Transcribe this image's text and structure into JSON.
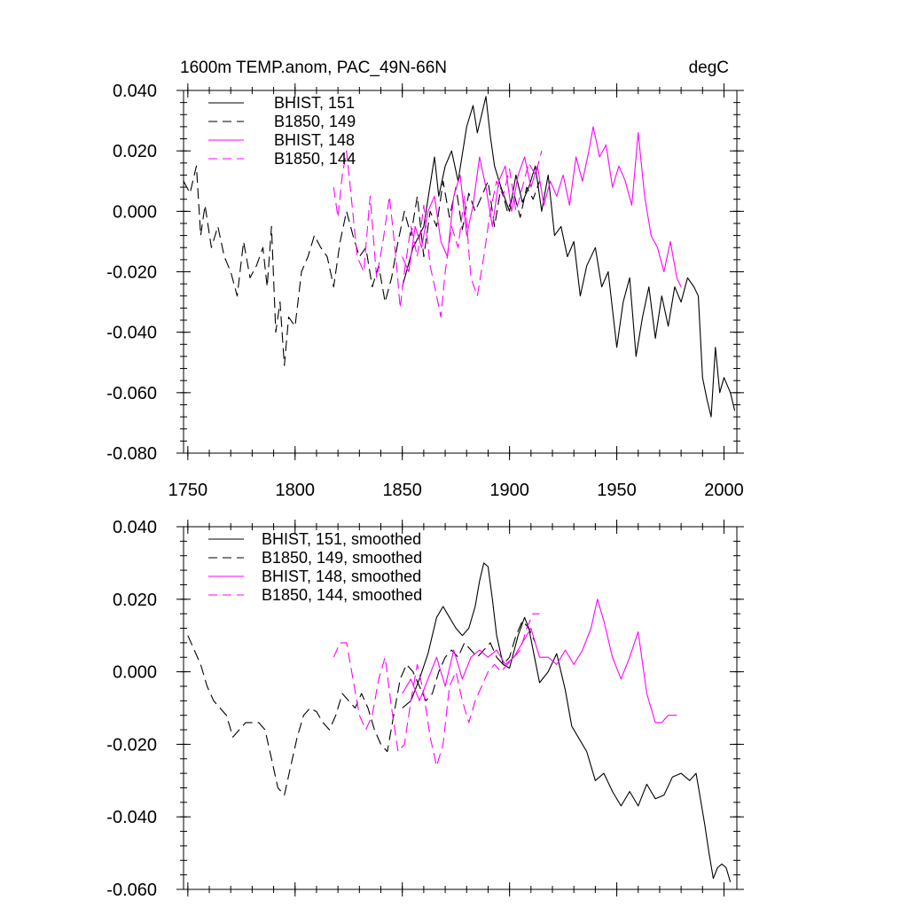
{
  "figure": {
    "title_left": "1600m TEMP.anom, PAC_49N-66N",
    "title_right": "degC"
  },
  "chart_data": [
    {
      "type": "line",
      "title": "1600m TEMP.anom, PAC_49N-66N",
      "units": "degC",
      "xlabel": "",
      "ylabel": "",
      "xlim": [
        1748,
        2006
      ],
      "ylim": [
        -0.08,
        0.04
      ],
      "x_ticks": [
        1750,
        1800,
        1850,
        1900,
        1950,
        2000
      ],
      "x_tick_labels": [
        "1750",
        "1800",
        "1850",
        "1900",
        "1950",
        "2000"
      ],
      "y_ticks": [
        0.04,
        0.02,
        0.0,
        -0.02,
        -0.04,
        -0.06,
        -0.08
      ],
      "y_tick_labels": [
        "0.040",
        "0.020",
        "0.000",
        "-0.020",
        "-0.040",
        "-0.060",
        "-0.080"
      ],
      "grid": false,
      "legend_position": "top-left",
      "series": [
        {
          "name": "BHIST, 151",
          "color": "#000000",
          "dash": "solid",
          "x": [
            1850,
            1855,
            1860,
            1865,
            1867,
            1870,
            1873,
            1876,
            1880,
            1883,
            1885,
            1887,
            1889,
            1891,
            1893,
            1896,
            1900,
            1903,
            1906,
            1909,
            1912,
            1915,
            1918,
            1921,
            1924,
            1927,
            1930,
            1933,
            1936,
            1940,
            1943,
            1946,
            1950,
            1953,
            1956,
            1959,
            1962,
            1965,
            1968,
            1971,
            1974,
            1977,
            1980,
            1983,
            1986,
            1988,
            1990,
            1992,
            1994,
            1996,
            1998,
            2000,
            2003,
            2005
          ],
          "y": [
            -0.025,
            -0.012,
            -0.005,
            0.018,
            0.005,
            0.015,
            0.02,
            0.01,
            0.028,
            0.035,
            0.026,
            0.032,
            0.038,
            0.025,
            0.015,
            0.008,
            0.0,
            0.012,
            0.003,
            0.008,
            0.015,
            0.0,
            0.012,
            -0.008,
            -0.005,
            -0.015,
            -0.01,
            -0.028,
            -0.018,
            -0.012,
            -0.025,
            -0.02,
            -0.045,
            -0.03,
            -0.022,
            -0.048,
            -0.035,
            -0.025,
            -0.042,
            -0.028,
            -0.038,
            -0.025,
            -0.03,
            -0.022,
            -0.025,
            -0.028,
            -0.055,
            -0.062,
            -0.068,
            -0.045,
            -0.06,
            -0.055,
            -0.06,
            -0.066
          ]
        },
        {
          "name": "B1850, 149",
          "color": "#000000",
          "dash": "dashed",
          "x": [
            1748,
            1751,
            1754,
            1756,
            1758,
            1761,
            1764,
            1767,
            1770,
            1773,
            1776,
            1779,
            1782,
            1785,
            1787,
            1789,
            1791,
            1793,
            1795,
            1797,
            1800,
            1803,
            1806,
            1809,
            1812,
            1815,
            1818,
            1821,
            1824,
            1827,
            1830,
            1833,
            1836,
            1839,
            1842,
            1845,
            1848,
            1851,
            1854,
            1857,
            1860,
            1863,
            1866,
            1869,
            1872,
            1875,
            1878,
            1881,
            1884,
            1887,
            1890,
            1893,
            1896,
            1899,
            1902,
            1905,
            1908,
            1911,
            1914
          ],
          "y": [
            0.01,
            0.006,
            0.015,
            -0.008,
            0.002,
            -0.012,
            -0.005,
            -0.015,
            -0.02,
            -0.028,
            -0.01,
            -0.022,
            -0.018,
            -0.012,
            -0.025,
            -0.005,
            -0.04,
            -0.03,
            -0.051,
            -0.035,
            -0.038,
            -0.02,
            -0.015,
            -0.008,
            -0.012,
            -0.015,
            -0.025,
            -0.01,
            0.0,
            -0.008,
            -0.015,
            -0.012,
            -0.025,
            -0.018,
            -0.03,
            -0.022,
            -0.01,
            0.0,
            -0.008,
            0.005,
            -0.015,
            0.0,
            -0.005,
            0.01,
            -0.002,
            0.008,
            -0.006,
            0.006,
            0.0,
            0.005,
            0.01,
            -0.005,
            0.008,
            0.0,
            0.006,
            -0.002,
            0.008,
            0.004,
            0.01
          ]
        },
        {
          "name": "BHIST, 148",
          "color": "#ff00ff",
          "dash": "solid",
          "x": [
            1850,
            1853,
            1856,
            1859,
            1862,
            1865,
            1868,
            1871,
            1874,
            1877,
            1880,
            1883,
            1886,
            1889,
            1892,
            1895,
            1898,
            1901,
            1904,
            1907,
            1910,
            1913,
            1916,
            1919,
            1922,
            1925,
            1928,
            1931,
            1934,
            1937,
            1939,
            1942,
            1945,
            1948,
            1951,
            1954,
            1957,
            1960,
            1963,
            1966,
            1969,
            1972,
            1975,
            1978,
            1980
          ],
          "y": [
            -0.015,
            -0.02,
            -0.005,
            -0.012,
            0.0,
            0.005,
            -0.01,
            -0.015,
            0.005,
            0.012,
            -0.008,
            0.002,
            0.018,
            0.008,
            -0.005,
            0.01,
            0.015,
            0.0,
            0.012,
            0.018,
            0.008,
            0.015,
            0.002,
            0.01,
            0.005,
            0.012,
            0.002,
            0.018,
            0.01,
            0.02,
            0.028,
            0.018,
            0.022,
            0.008,
            0.015,
            0.01,
            0.002,
            0.026,
            0.005,
            -0.008,
            -0.012,
            -0.02,
            -0.01,
            -0.022,
            -0.025
          ]
        },
        {
          "name": "B1850, 144",
          "color": "#ff00ff",
          "dash": "dashed",
          "x": [
            1818,
            1820,
            1822,
            1824,
            1826,
            1829,
            1832,
            1835,
            1838,
            1841,
            1844,
            1847,
            1849,
            1851,
            1854,
            1857,
            1860,
            1863,
            1866,
            1868,
            1870,
            1873,
            1876,
            1879,
            1882,
            1885,
            1888,
            1891,
            1894,
            1897,
            1900,
            1903,
            1906,
            1909,
            1912,
            1915
          ],
          "y": [
            0.008,
            -0.002,
            0.012,
            0.02,
            0.006,
            -0.015,
            -0.02,
            0.005,
            -0.022,
            -0.01,
            0.005,
            -0.015,
            -0.032,
            -0.02,
            -0.005,
            -0.015,
            0.002,
            -0.018,
            -0.028,
            -0.035,
            -0.02,
            -0.005,
            -0.012,
            0.005,
            -0.022,
            -0.028,
            -0.015,
            0.0,
            0.01,
            0.005,
            0.014,
            0.0,
            0.008,
            0.016,
            0.012,
            0.02
          ]
        }
      ]
    },
    {
      "type": "line",
      "title": "",
      "xlabel": "",
      "ylabel": "",
      "xlim": [
        1748,
        2006
      ],
      "ylim": [
        -0.06,
        0.04
      ],
      "x_ticks": [
        1750,
        1800,
        1850,
        1900,
        1950,
        2000
      ],
      "x_tick_labels": [],
      "y_ticks": [
        0.04,
        0.02,
        0.0,
        -0.02,
        -0.04,
        -0.06
      ],
      "y_tick_labels": [
        "0.040",
        "0.020",
        "0.000",
        "-0.020",
        "-0.040",
        "-0.060"
      ],
      "grid": false,
      "legend_position": "top-left",
      "series": [
        {
          "name": "BHIST, 151, smoothed",
          "color": "#000000",
          "dash": "solid",
          "x": [
            1850,
            1854,
            1858,
            1862,
            1866,
            1869,
            1872,
            1875,
            1878,
            1881,
            1884,
            1886,
            1888,
            1890,
            1892,
            1894,
            1897,
            1900,
            1904,
            1907,
            1909,
            1911,
            1914,
            1918,
            1922,
            1926,
            1929,
            1932,
            1936,
            1940,
            1944,
            1948,
            1952,
            1956,
            1960,
            1964,
            1968,
            1972,
            1976,
            1980,
            1984,
            1987,
            1989,
            1991,
            1993,
            1995,
            1997,
            1999,
            2001,
            2003
          ],
          "y": [
            -0.01,
            -0.008,
            -0.002,
            0.005,
            0.015,
            0.018,
            0.015,
            0.012,
            0.01,
            0.012,
            0.018,
            0.025,
            0.03,
            0.029,
            0.02,
            0.01,
            0.002,
            0.001,
            0.01,
            0.015,
            0.012,
            0.006,
            -0.003,
            0.0,
            0.005,
            -0.005,
            -0.015,
            -0.018,
            -0.022,
            -0.03,
            -0.028,
            -0.033,
            -0.037,
            -0.033,
            -0.037,
            -0.031,
            -0.035,
            -0.034,
            -0.029,
            -0.028,
            -0.03,
            -0.028,
            -0.035,
            -0.042,
            -0.05,
            -0.057,
            -0.054,
            -0.053,
            -0.054,
            -0.058
          ]
        },
        {
          "name": "B1850, 149, smoothed",
          "color": "#000000",
          "dash": "dashed",
          "x": [
            1750,
            1753,
            1756,
            1759,
            1762,
            1765,
            1768,
            1771,
            1774,
            1777,
            1780,
            1783,
            1786,
            1789,
            1792,
            1795,
            1798,
            1801,
            1804,
            1807,
            1810,
            1813,
            1816,
            1819,
            1822,
            1825,
            1828,
            1831,
            1834,
            1837,
            1840,
            1843,
            1846,
            1849,
            1852,
            1855,
            1858,
            1861,
            1864,
            1867,
            1870,
            1873,
            1876,
            1879,
            1882,
            1885,
            1888,
            1891,
            1894,
            1897,
            1900,
            1903,
            1906,
            1909,
            1912
          ],
          "y": [
            0.01,
            0.006,
            0.002,
            -0.004,
            -0.008,
            -0.01,
            -0.012,
            -0.018,
            -0.016,
            -0.014,
            -0.014,
            -0.014,
            -0.016,
            -0.024,
            -0.032,
            -0.034,
            -0.026,
            -0.018,
            -0.012,
            -0.01,
            -0.011,
            -0.014,
            -0.016,
            -0.012,
            -0.006,
            -0.008,
            -0.01,
            -0.006,
            -0.01,
            -0.016,
            -0.02,
            -0.022,
            -0.012,
            -0.002,
            0.002,
            0.0,
            -0.004,
            -0.008,
            -0.006,
            0.0,
            0.004,
            0.006,
            0.004,
            0.008,
            0.006,
            0.004,
            0.006,
            0.008,
            0.004,
            0.002,
            0.004,
            0.01,
            0.014,
            0.012,
            0.008
          ]
        },
        {
          "name": "BHIST, 148, smoothed",
          "color": "#ff00ff",
          "dash": "solid",
          "x": [
            1850,
            1854,
            1858,
            1862,
            1866,
            1870,
            1874,
            1878,
            1882,
            1886,
            1890,
            1894,
            1898,
            1902,
            1906,
            1910,
            1914,
            1918,
            1922,
            1926,
            1930,
            1934,
            1938,
            1941,
            1944,
            1948,
            1952,
            1956,
            1960,
            1964,
            1968,
            1971,
            1974,
            1978
          ],
          "y": [
            -0.006,
            -0.002,
            -0.008,
            -0.002,
            0.004,
            -0.004,
            0.006,
            -0.002,
            0.004,
            0.006,
            0.004,
            0.006,
            0.002,
            0.004,
            0.008,
            0.012,
            0.004,
            0.004,
            0.002,
            0.006,
            0.002,
            0.006,
            0.012,
            0.02,
            0.014,
            0.004,
            -0.002,
            0.004,
            0.011,
            -0.006,
            -0.014,
            -0.014,
            -0.012,
            -0.012
          ]
        },
        {
          "name": "B1850, 144, smoothed",
          "color": "#ff00ff",
          "dash": "dashed",
          "x": [
            1818,
            1821,
            1824,
            1827,
            1830,
            1833,
            1836,
            1839,
            1842,
            1845,
            1848,
            1851,
            1854,
            1857,
            1860,
            1863,
            1866,
            1869,
            1872,
            1875,
            1878,
            1881,
            1884,
            1887,
            1890,
            1893,
            1896,
            1899,
            1902,
            1905,
            1908,
            1911,
            1914
          ],
          "y": [
            0.004,
            0.008,
            0.008,
            -0.002,
            -0.012,
            -0.016,
            -0.012,
            -0.002,
            0.004,
            -0.01,
            -0.022,
            -0.02,
            -0.008,
            0.002,
            -0.006,
            -0.018,
            -0.026,
            -0.02,
            -0.004,
            0.0,
            -0.008,
            -0.014,
            -0.008,
            -0.004,
            0.0,
            0.002,
            0.0,
            0.002,
            0.004,
            0.006,
            0.012,
            0.016,
            0.016
          ]
        }
      ]
    }
  ]
}
